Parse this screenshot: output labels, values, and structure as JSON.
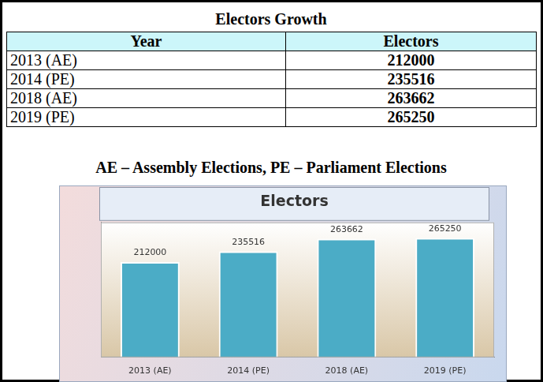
{
  "table": {
    "title": "Electors Growth",
    "header": [
      "Year",
      "Electors"
    ],
    "rows": [
      [
        "2013 (AE)",
        212000
      ],
      [
        "2014 (PE)",
        235516
      ],
      [
        "2018 (AE)",
        263662
      ],
      [
        "2019 (PE)",
        265250
      ]
    ]
  },
  "caption": "AE – Assembly Elections, PE – Parliament Elections",
  "chart_data": {
    "type": "bar",
    "title": "Electors",
    "categories": [
      "2013 (AE)",
      "2014 (PE)",
      "2018 (AE)",
      "2019 (PE)"
    ],
    "values": [
      212000,
      235516,
      263662,
      265250
    ],
    "color": "#4bacc6",
    "ylim": [
      0,
      300000
    ],
    "grid": false,
    "data_labels": true,
    "tick_labels": "x"
  }
}
